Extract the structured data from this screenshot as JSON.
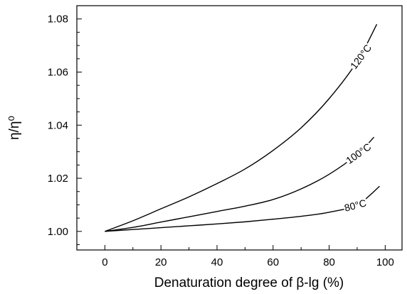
{
  "chart_data": {
    "type": "line",
    "title": "",
    "xlabel": "Denaturation degree of β-lg (%)",
    "ylabel": "η/η⁰",
    "xlim": [
      -10,
      106
    ],
    "ylim": [
      0.993,
      1.085
    ],
    "x_ticks": [
      0,
      20,
      40,
      60,
      80,
      100
    ],
    "x_tick_labels": [
      "0",
      "20",
      "40",
      "60",
      "80",
      "100"
    ],
    "y_ticks": [
      1.0,
      1.02,
      1.04,
      1.06,
      1.08
    ],
    "y_tick_labels": [
      "1.00",
      "1.02",
      "1.04",
      "1.06",
      "1.08"
    ],
    "grid": false,
    "legend": "none",
    "series": [
      {
        "name": "120°C",
        "label_at_x": 88,
        "x": [
          0,
          10,
          20,
          30,
          40,
          50,
          60,
          70,
          80,
          90,
          97
        ],
        "values": [
          1.0,
          1.004,
          1.0085,
          1.013,
          1.018,
          1.0235,
          1.0305,
          1.039,
          1.05,
          1.064,
          1.078
        ]
      },
      {
        "name": "100°C",
        "label_at_x": 86,
        "x": [
          0,
          10,
          20,
          30,
          40,
          50,
          60,
          70,
          80,
          90,
          96
        ],
        "values": [
          1.0,
          1.0015,
          1.0035,
          1.0055,
          1.0075,
          1.0095,
          1.012,
          1.016,
          1.0215,
          1.029,
          1.0355
        ]
      },
      {
        "name": "80°C",
        "label_at_x": 85,
        "x": [
          0,
          10,
          20,
          30,
          40,
          50,
          60,
          70,
          80,
          90,
          98
        ],
        "values": [
          1.0,
          1.0007,
          1.0014,
          1.0021,
          1.0028,
          1.0036,
          1.0046,
          1.0057,
          1.0072,
          1.01,
          1.017
        ]
      }
    ]
  }
}
